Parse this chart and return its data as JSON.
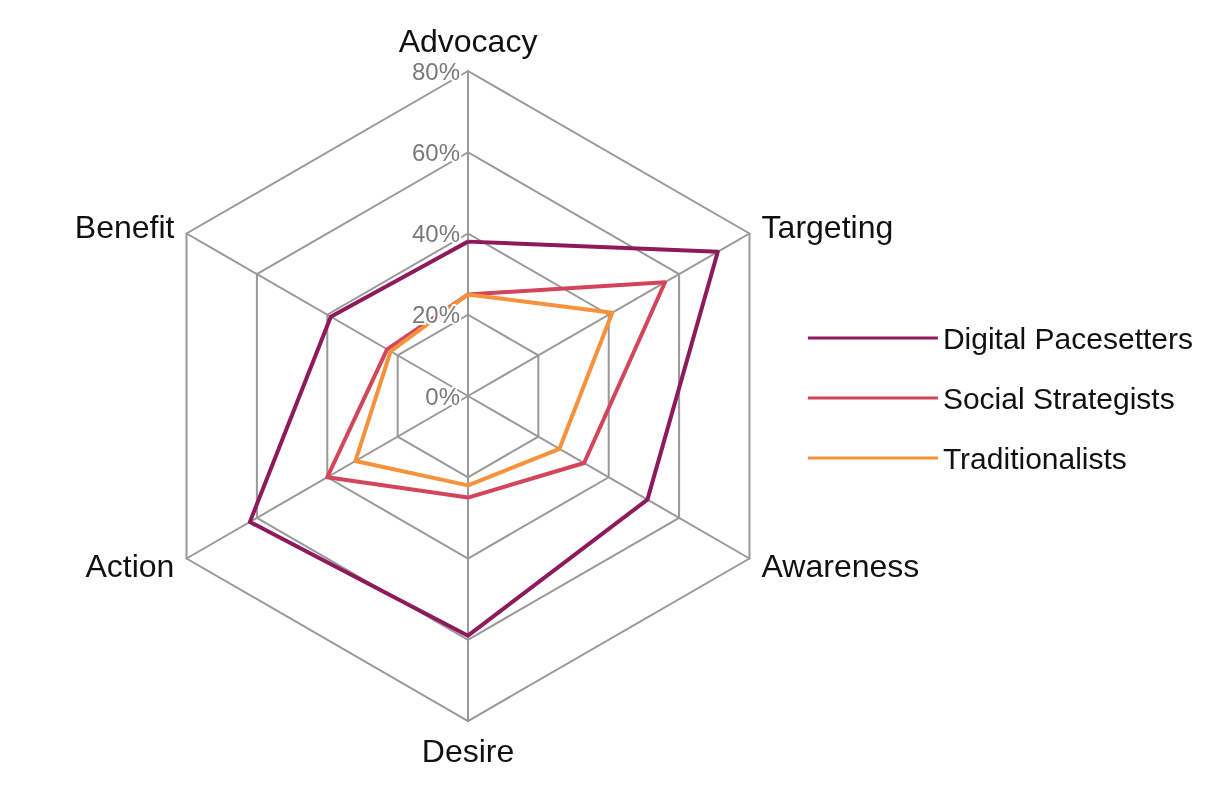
{
  "chart_data": {
    "type": "radar",
    "categories": [
      "Advocacy",
      "Targeting",
      "Awareness",
      "Desire",
      "Action",
      "Benefit"
    ],
    "ylim": [
      0,
      80
    ],
    "yticks": [
      {
        "value": 0,
        "label": "0%"
      },
      {
        "value": 20,
        "label": "20%"
      },
      {
        "value": 40,
        "label": "40%"
      },
      {
        "value": 60,
        "label": "60%"
      },
      {
        "value": 80,
        "label": "80%"
      }
    ],
    "legend": "right",
    "grid": true,
    "series": [
      {
        "name": "Digital Pacesetters",
        "color": "#8e1a5c",
        "values": [
          38,
          71,
          51,
          59,
          62,
          39
        ]
      },
      {
        "name": "Social Strategists",
        "color": "#d2455a",
        "values": [
          25,
          56,
          33,
          25,
          40,
          23
        ]
      },
      {
        "name": "Traditionalists",
        "color": "#f7923a",
        "values": [
          25,
          41,
          26,
          22,
          32,
          22
        ]
      }
    ]
  }
}
